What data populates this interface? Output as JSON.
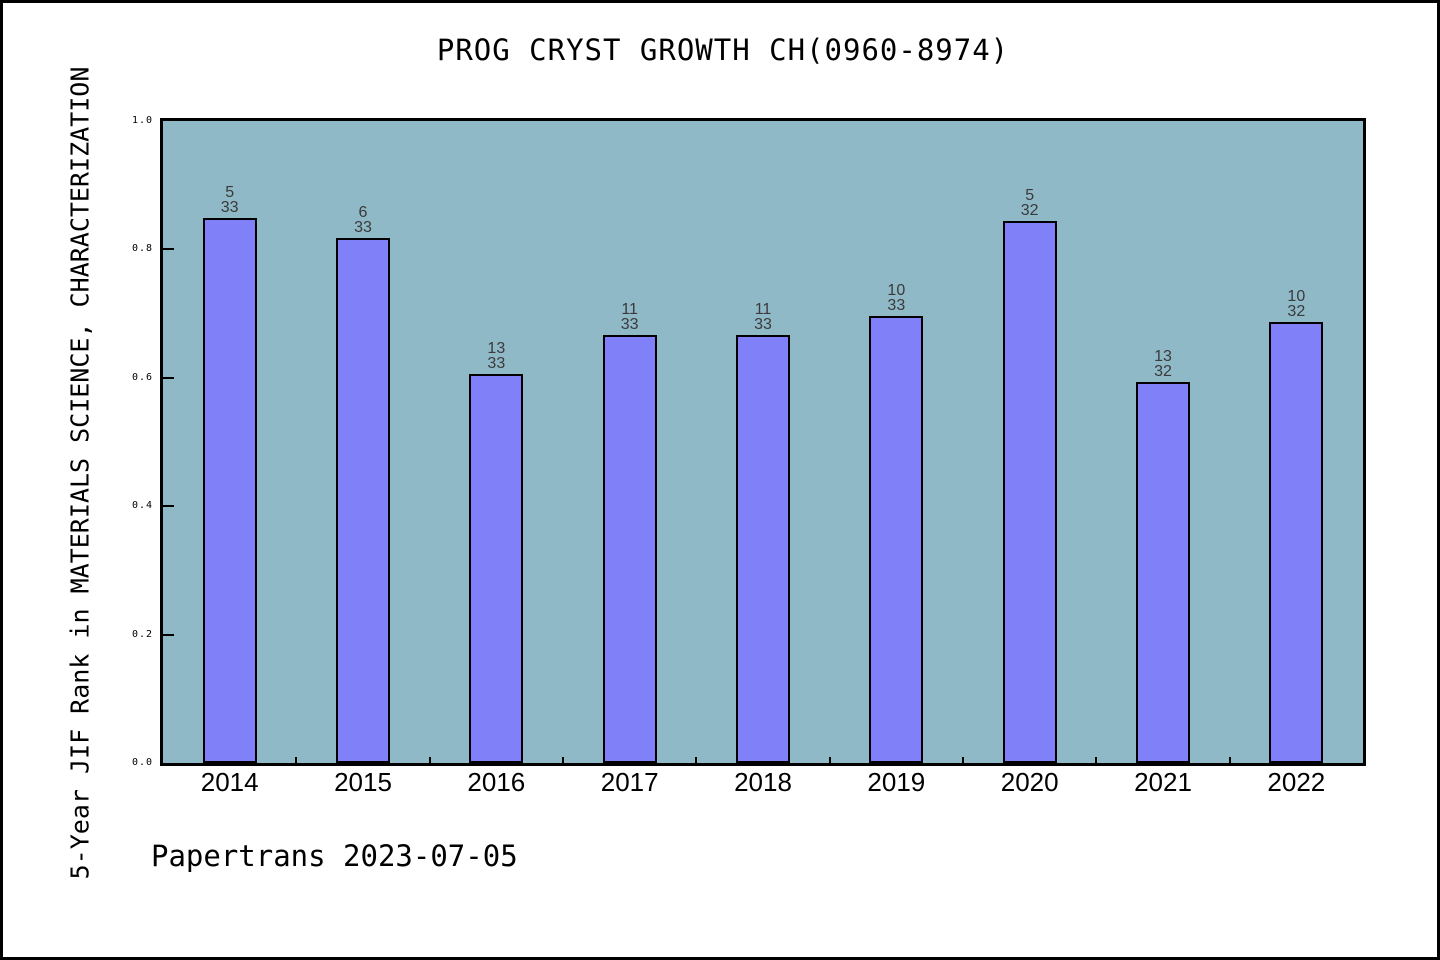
{
  "title": "PROG CRYST GROWTH CH(0960-8974)",
  "footer": "Papertrans 2023-07-05",
  "colors": {
    "bar_fill": "#8080f8",
    "bar_border": "#000000",
    "plot_bg": "#8fb9c7",
    "frame": "#000000",
    "page_bg": "#ffffff",
    "bar_label_text": "#3a3a3a"
  },
  "chart_data": {
    "type": "bar",
    "title": "PROG CRYST GROWTH CH(0960-8974)",
    "ylabel": "5-Year JIF Rank in MATERIALS SCIENCE, CHARACTERIZATION",
    "xlabel": "",
    "categories": [
      "2014",
      "2015",
      "2016",
      "2017",
      "2018",
      "2019",
      "2020",
      "2021",
      "2022"
    ],
    "values": [
      0.8485,
      0.8182,
      0.6061,
      0.6667,
      0.6667,
      0.697,
      0.8438,
      0.5938,
      0.6875
    ],
    "bar_labels": [
      {
        "rank": "5",
        "total": "33"
      },
      {
        "rank": "6",
        "total": "33"
      },
      {
        "rank": "13",
        "total": "33"
      },
      {
        "rank": "11",
        "total": "33"
      },
      {
        "rank": "11",
        "total": "33"
      },
      {
        "rank": "10",
        "total": "33"
      },
      {
        "rank": "5",
        "total": "32"
      },
      {
        "rank": "13",
        "total": "32"
      },
      {
        "rank": "10",
        "total": "32"
      }
    ],
    "ylim": [
      0,
      1
    ],
    "yticks": [
      "0.0",
      "0.2",
      "0.4",
      "0.6",
      "0.8",
      "1.0"
    ],
    "grid": false,
    "legend": null
  }
}
